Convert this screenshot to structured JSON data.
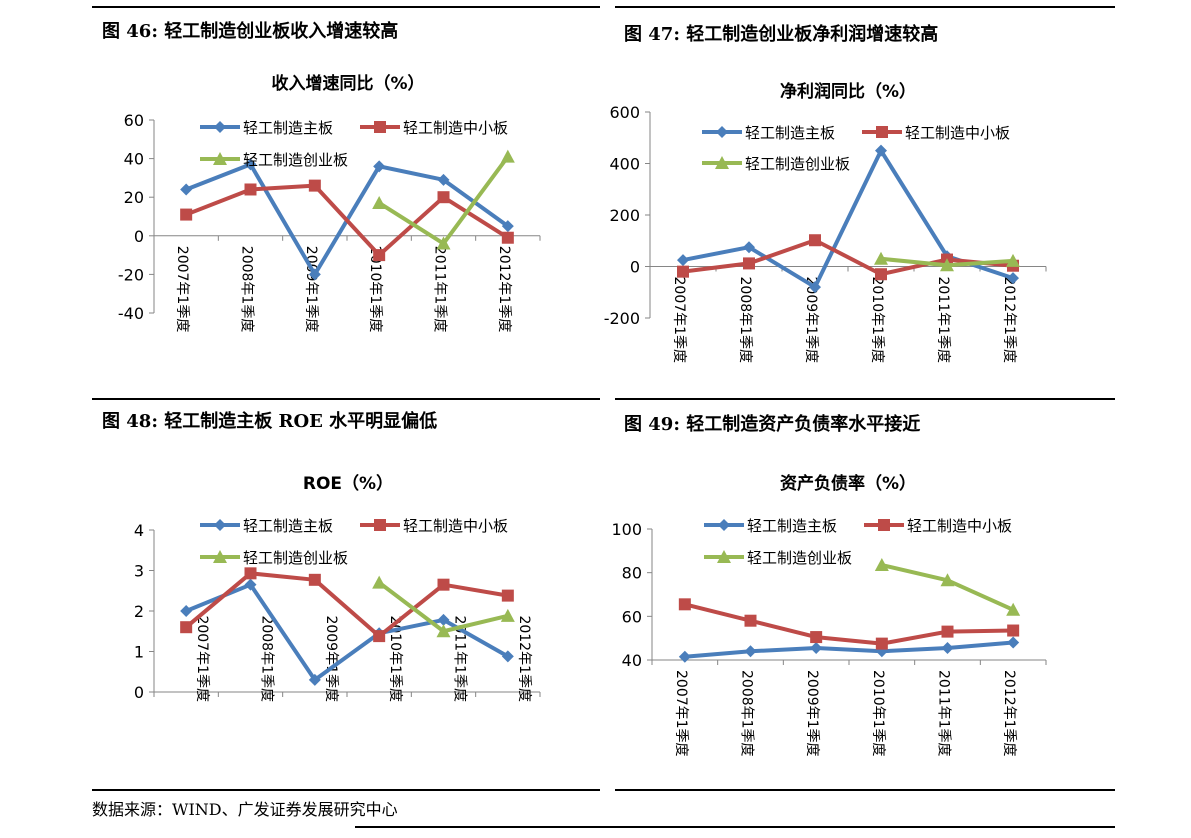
{
  "colors": {
    "main": "#4a7ebb",
    "sme": "#be4b48",
    "chinext": "#98b954"
  },
  "figures": [
    {
      "label": "图 46:",
      "title": "轻工制造创业板收入增速较高"
    },
    {
      "label": "图 47:",
      "title": "轻工制造创业板净利润增速较高"
    },
    {
      "label": "图 48:",
      "title": "轻工制造主板 ROE 水平明显偏低"
    },
    {
      "label": "图 49:",
      "title": "轻工制造资产负债率水平接近"
    }
  ],
  "source": "数据来源：WIND、广发证券发展研究中心",
  "chart_data": [
    {
      "type": "line",
      "title": "收入增速同比（%）",
      "categories": [
        "2007年1季度",
        "2008年1季度",
        "2009年1季度",
        "2010年1季度",
        "2011年1季度",
        "2012年1季度"
      ],
      "ylim": [
        -40,
        60
      ],
      "yticks": [
        -40,
        -20,
        0,
        20,
        40,
        60
      ],
      "legend_layout": "two-rows",
      "series": [
        {
          "name": "轻工制造主板",
          "marker": "diamond",
          "values": [
            24,
            37,
            -20,
            36,
            29,
            5
          ]
        },
        {
          "name": "轻工制造中小板",
          "marker": "square",
          "values": [
            11,
            24,
            26,
            -10,
            20,
            -1
          ]
        },
        {
          "name": "轻工制造创业板",
          "marker": "triangle",
          "values": [
            null,
            null,
            null,
            17,
            -4,
            41
          ]
        }
      ]
    },
    {
      "type": "line",
      "title": "净利润同比（%）",
      "categories": [
        "2007年1季度",
        "2008年1季度",
        "2009年1季度",
        "2010年1季度",
        "2011年1季度",
        "2012年1季度"
      ],
      "ylim": [
        -200,
        600
      ],
      "yticks": [
        -200,
        0,
        200,
        400,
        600
      ],
      "legend_layout": "two-rows",
      "series": [
        {
          "name": "轻工制造主板",
          "marker": "diamond",
          "values": [
            25,
            75,
            -80,
            450,
            40,
            -45
          ]
        },
        {
          "name": "轻工制造中小板",
          "marker": "square",
          "values": [
            -20,
            12,
            102,
            -30,
            27,
            3
          ]
        },
        {
          "name": "轻工制造创业板",
          "marker": "triangle",
          "values": [
            null,
            null,
            null,
            30,
            5,
            22
          ]
        }
      ]
    },
    {
      "type": "line",
      "title": "ROE（%）",
      "categories": [
        "2007年1季度",
        "2008年1季度",
        "2009年1季度",
        "2010年1季度",
        "2011年1季度",
        "2012年1季度"
      ],
      "ylim": [
        0,
        4
      ],
      "yticks": [
        0,
        1,
        2,
        3,
        4
      ],
      "legend_layout": "two-rows",
      "series": [
        {
          "name": "轻工制造主板",
          "marker": "diamond",
          "values": [
            2.0,
            2.65,
            0.3,
            1.45,
            1.78,
            0.88
          ]
        },
        {
          "name": "轻工制造中小板",
          "marker": "square",
          "values": [
            1.6,
            2.93,
            2.77,
            1.38,
            2.65,
            2.38
          ]
        },
        {
          "name": "轻工制造创业板",
          "marker": "triangle",
          "values": [
            null,
            null,
            null,
            2.7,
            1.5,
            1.88
          ]
        }
      ]
    },
    {
      "type": "line",
      "title": "资产负债率（%）",
      "categories": [
        "2007年1季度",
        "2008年1季度",
        "2009年1季度",
        "2010年1季度",
        "2011年1季度",
        "2012年1季度"
      ],
      "ylim": [
        40,
        100
      ],
      "yticks": [
        40,
        60,
        80,
        100
      ],
      "legend_layout": "two-rows",
      "series": [
        {
          "name": "轻工制造主板",
          "marker": "diamond",
          "values": [
            41.5,
            44,
            45.5,
            44,
            45.5,
            48
          ]
        },
        {
          "name": "轻工制造中小板",
          "marker": "square",
          "values": [
            65.5,
            58,
            50.5,
            47.5,
            53,
            53.5
          ]
        },
        {
          "name": "轻工制造创业板",
          "marker": "triangle",
          "values": [
            null,
            null,
            null,
            83.5,
            76.5,
            63
          ]
        }
      ]
    }
  ]
}
